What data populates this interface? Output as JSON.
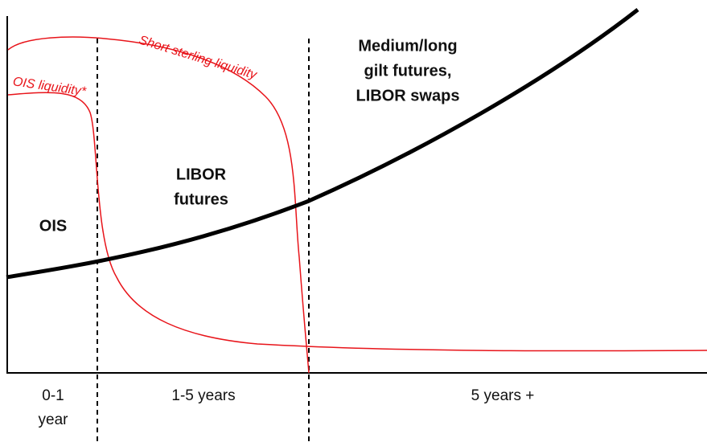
{
  "curve_labels": {
    "ois_liquidity": "OIS liquidity*",
    "short_sterling_liquidity": "Short sterling liquidity"
  },
  "regions": [
    {
      "label": [
        "OIS"
      ],
      "period": [
        "0-1",
        "year"
      ]
    },
    {
      "label": [
        "LIBOR",
        "futures"
      ],
      "period": [
        "1-5 years"
      ]
    },
    {
      "label": [
        "Medium/long",
        "gilt futures,",
        "LIBOR swaps"
      ],
      "period": [
        "5 years +"
      ]
    }
  ]
}
